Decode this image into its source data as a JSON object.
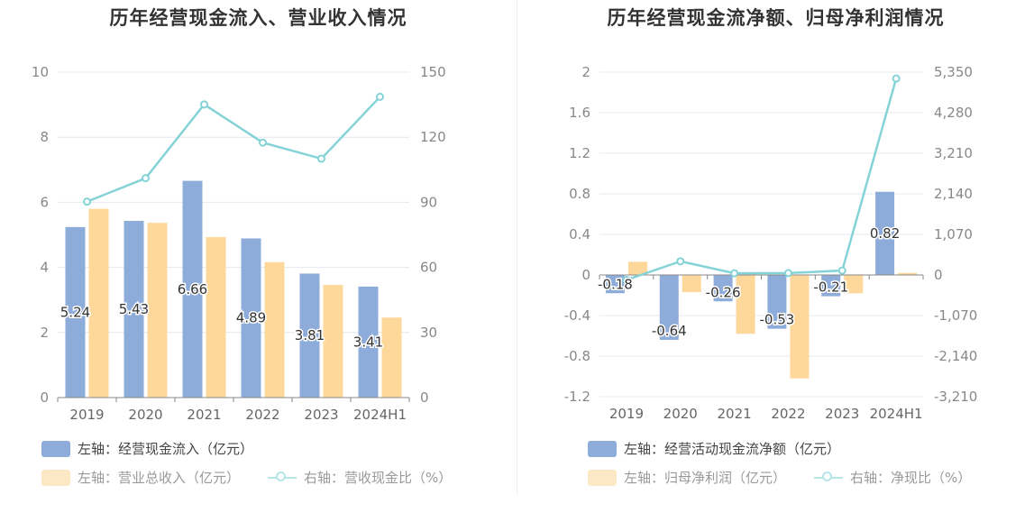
{
  "colors": {
    "bar_blue": "#8eacd9",
    "bar_yellow": "#fed89b",
    "line_teal": "#86d3d7",
    "grid": "#e4e8f0",
    "axis": "#888888"
  },
  "chart_data": [
    {
      "type": "bar",
      "title": "历年经营现金流入、营业收入情况",
      "categories": [
        "2019",
        "2020",
        "2021",
        "2022",
        "2023",
        "2024H1"
      ],
      "left_axis": {
        "ylim": [
          0,
          10
        ],
        "ticks": [
          "0",
          "2",
          "4",
          "6",
          "8",
          "10"
        ]
      },
      "right_axis": {
        "ylim": [
          0,
          150
        ],
        "ticks": [
          "0",
          "30",
          "60",
          "90",
          "120",
          "150"
        ]
      },
      "series": [
        {
          "name": "左轴：经营现金流入（亿元）",
          "axis": "left",
          "kind": "bar",
          "values": [
            5.24,
            5.43,
            6.66,
            4.89,
            3.81,
            3.41
          ],
          "labels": [
            "5.24",
            "5.43",
            "6.66",
            "4.89",
            "3.81",
            "3.41"
          ]
        },
        {
          "name": "左轴：营业总收入（亿元）",
          "axis": "left",
          "kind": "bar",
          "values": [
            5.8,
            5.37,
            4.93,
            4.16,
            3.46,
            2.46
          ]
        },
        {
          "name": "右轴：营收现金比（%）",
          "axis": "right",
          "kind": "line",
          "values": [
            90.3,
            101.1,
            135.1,
            117.5,
            110.1,
            138.6
          ]
        }
      ],
      "legend": [
        "左轴：经营现金流入（亿元）",
        "左轴：营业总收入（亿元）",
        "右轴：营收现金比（%）"
      ]
    },
    {
      "type": "bar",
      "title": "历年经营现金流净额、归母净利润情况",
      "categories": [
        "2019",
        "2020",
        "2021",
        "2022",
        "2023",
        "2024H1"
      ],
      "left_axis": {
        "ylim": [
          -1.2,
          2
        ],
        "ticks": [
          "-1.2",
          "-0.8",
          "-0.4",
          "0",
          "0.4",
          "0.8",
          "1.2",
          "1.6",
          "2"
        ]
      },
      "right_axis": {
        "ylim": [
          -3210,
          5350
        ],
        "ticks": [
          "-3,210",
          "-2,140",
          "-1,070",
          "0",
          "1,070",
          "2,140",
          "3,210",
          "4,280",
          "5,350"
        ]
      },
      "series": [
        {
          "name": "左轴：经营活动现金流净额（亿元）",
          "axis": "left",
          "kind": "bar",
          "values": [
            -0.18,
            -0.64,
            -0.26,
            -0.53,
            -0.21,
            0.82
          ],
          "labels": [
            "-0.18",
            "-0.64",
            "-0.26",
            "-0.53",
            "-0.21",
            "0.82"
          ]
        },
        {
          "name": "左轴：归母净利润（亿元）",
          "axis": "left",
          "kind": "bar",
          "values": [
            0.13,
            -0.17,
            -0.58,
            -1.02,
            -0.18,
            0.02
          ]
        },
        {
          "name": "右轴：净现比（%）",
          "axis": "right",
          "kind": "line",
          "values": [
            -130,
            360,
            45,
            50,
            115,
            5180
          ]
        }
      ],
      "legend": [
        "左轴：经营活动现金流净额（亿元）",
        "左轴：归母净利润（亿元）",
        "右轴：净现比（%）"
      ]
    }
  ]
}
